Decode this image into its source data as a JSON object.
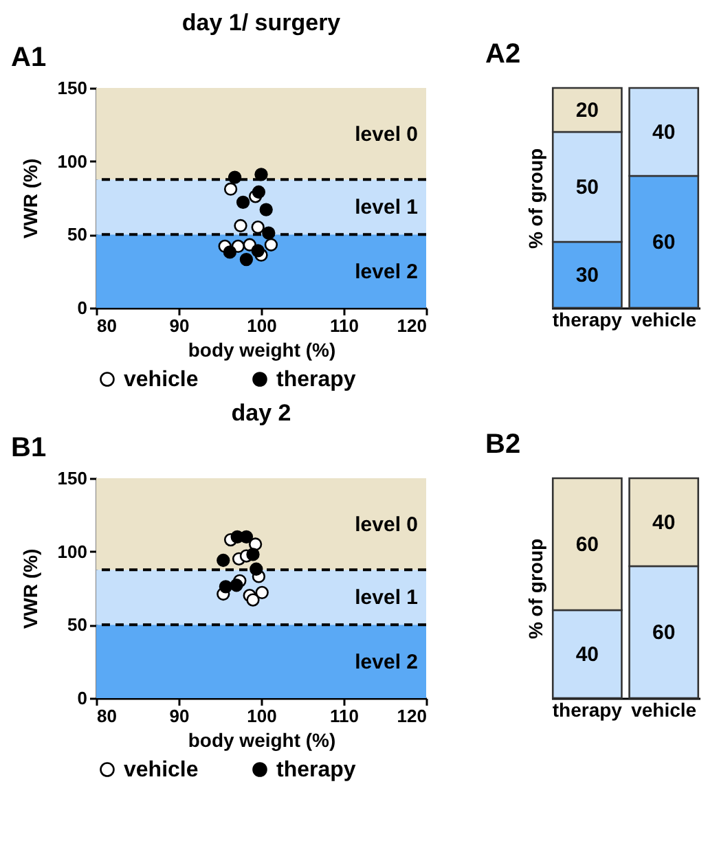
{
  "chart_data": [
    {
      "type": "scatter",
      "title": "day 1/ surgery",
      "annotations": [
        "A1"
      ],
      "xlabel": "body weight (%)",
      "ylabel": "VWR (%)",
      "xlim": [
        80,
        120
      ],
      "ylim": [
        0,
        150
      ],
      "xticks": [
        80,
        90,
        100,
        110,
        120
      ],
      "yticks": [
        0,
        50,
        100,
        150
      ],
      "marker": "circle",
      "legend": "bottom",
      "bands": [
        {
          "axis": "y",
          "from": 0,
          "to": 50,
          "label": "level 2",
          "color": "#5aa9f5"
        },
        {
          "axis": "y",
          "from": 50,
          "to": 87.5,
          "label": "level 1",
          "color": "#c6e0fb"
        },
        {
          "axis": "y",
          "from": 87.5,
          "to": 150,
          "label": "level 0",
          "color": "#ebe3c9"
        }
      ],
      "ref_lines": [
        {
          "axis": "y",
          "value": 50,
          "line_style": "dashed"
        },
        {
          "axis": "y",
          "value": 87.5,
          "line_style": "dashed"
        }
      ],
      "series": [
        {
          "name": "vehicle",
          "color": "#ffffff",
          "x": [
            96.3,
            99.3,
            97.5,
            99.6,
            95.6,
            97.2,
            98.6,
            101.2,
            100
          ],
          "values": [
            81,
            76,
            56,
            55,
            42,
            42,
            43,
            43,
            36
          ]
        },
        {
          "name": "therapy",
          "color": "#000000",
          "x": [
            96.8,
            100,
            99.7,
            97.8,
            100.6,
            100.9,
            96.2,
            98.2,
            99.6
          ],
          "values": [
            89,
            91,
            79,
            72,
            67,
            51,
            38,
            33,
            39
          ]
        }
      ]
    },
    {
      "type": "bar",
      "title": "A2",
      "ylabel": "% of group",
      "categories": [
        "therapy",
        "vehicle"
      ],
      "stacked": true,
      "data_labels": true,
      "tick_labels": "x",
      "series": [
        {
          "color": "#5aa9f5",
          "values": [
            30,
            60
          ]
        },
        {
          "color": "#c6e0fb",
          "values": [
            50,
            40
          ]
        },
        {
          "color": "#ebe3c9",
          "values": [
            20,
            null
          ]
        }
      ]
    },
    {
      "type": "scatter",
      "title": "day 2",
      "annotations": [
        "B1"
      ],
      "xlabel": "body weight (%)",
      "ylabel": "VWR (%)",
      "xlim": [
        80,
        120
      ],
      "ylim": [
        0,
        150
      ],
      "xticks": [
        80,
        90,
        100,
        110,
        120
      ],
      "yticks": [
        0,
        50,
        100,
        150
      ],
      "marker": "circle",
      "legend": "bottom",
      "bands": [
        {
          "axis": "y",
          "from": 0,
          "to": 50,
          "label": "level 2",
          "color": "#5aa9f5"
        },
        {
          "axis": "y",
          "from": 50,
          "to": 87.5,
          "label": "level 1",
          "color": "#c6e0fb"
        },
        {
          "axis": "y",
          "from": 87.5,
          "to": 150,
          "label": "level 0",
          "color": "#ebe3c9"
        }
      ],
      "ref_lines": [
        {
          "axis": "y",
          "value": 50,
          "line_style": "dashed"
        },
        {
          "axis": "y",
          "value": 87.5,
          "line_style": "dashed"
        }
      ],
      "series": [
        {
          "name": "vehicle",
          "color": "#ffffff",
          "x": [
            96.3,
            99.3,
            97.3,
            98.2,
            99.7,
            97.4,
            95.4,
            98.6,
            100.1,
            99
          ],
          "values": [
            108,
            105,
            95,
            97,
            83,
            80,
            71,
            70,
            72,
            67
          ]
        },
        {
          "name": "therapy",
          "color": "#000000",
          "x": [
            97.1,
            98.2,
            95.4,
            99,
            99.4,
            95.7,
            97
          ],
          "values": [
            110,
            110,
            94,
            98,
            88,
            76,
            77
          ]
        }
      ]
    },
    {
      "type": "bar",
      "title": "B2",
      "ylabel": "% of group",
      "categories": [
        "therapy",
        "vehicle"
      ],
      "stacked": true,
      "data_labels": true,
      "tick_labels": "x",
      "series": [
        {
          "color": "#c6e0fb",
          "values": [
            40,
            60
          ]
        },
        {
          "color": "#ebe3c9",
          "values": [
            60,
            40
          ]
        }
      ]
    }
  ]
}
